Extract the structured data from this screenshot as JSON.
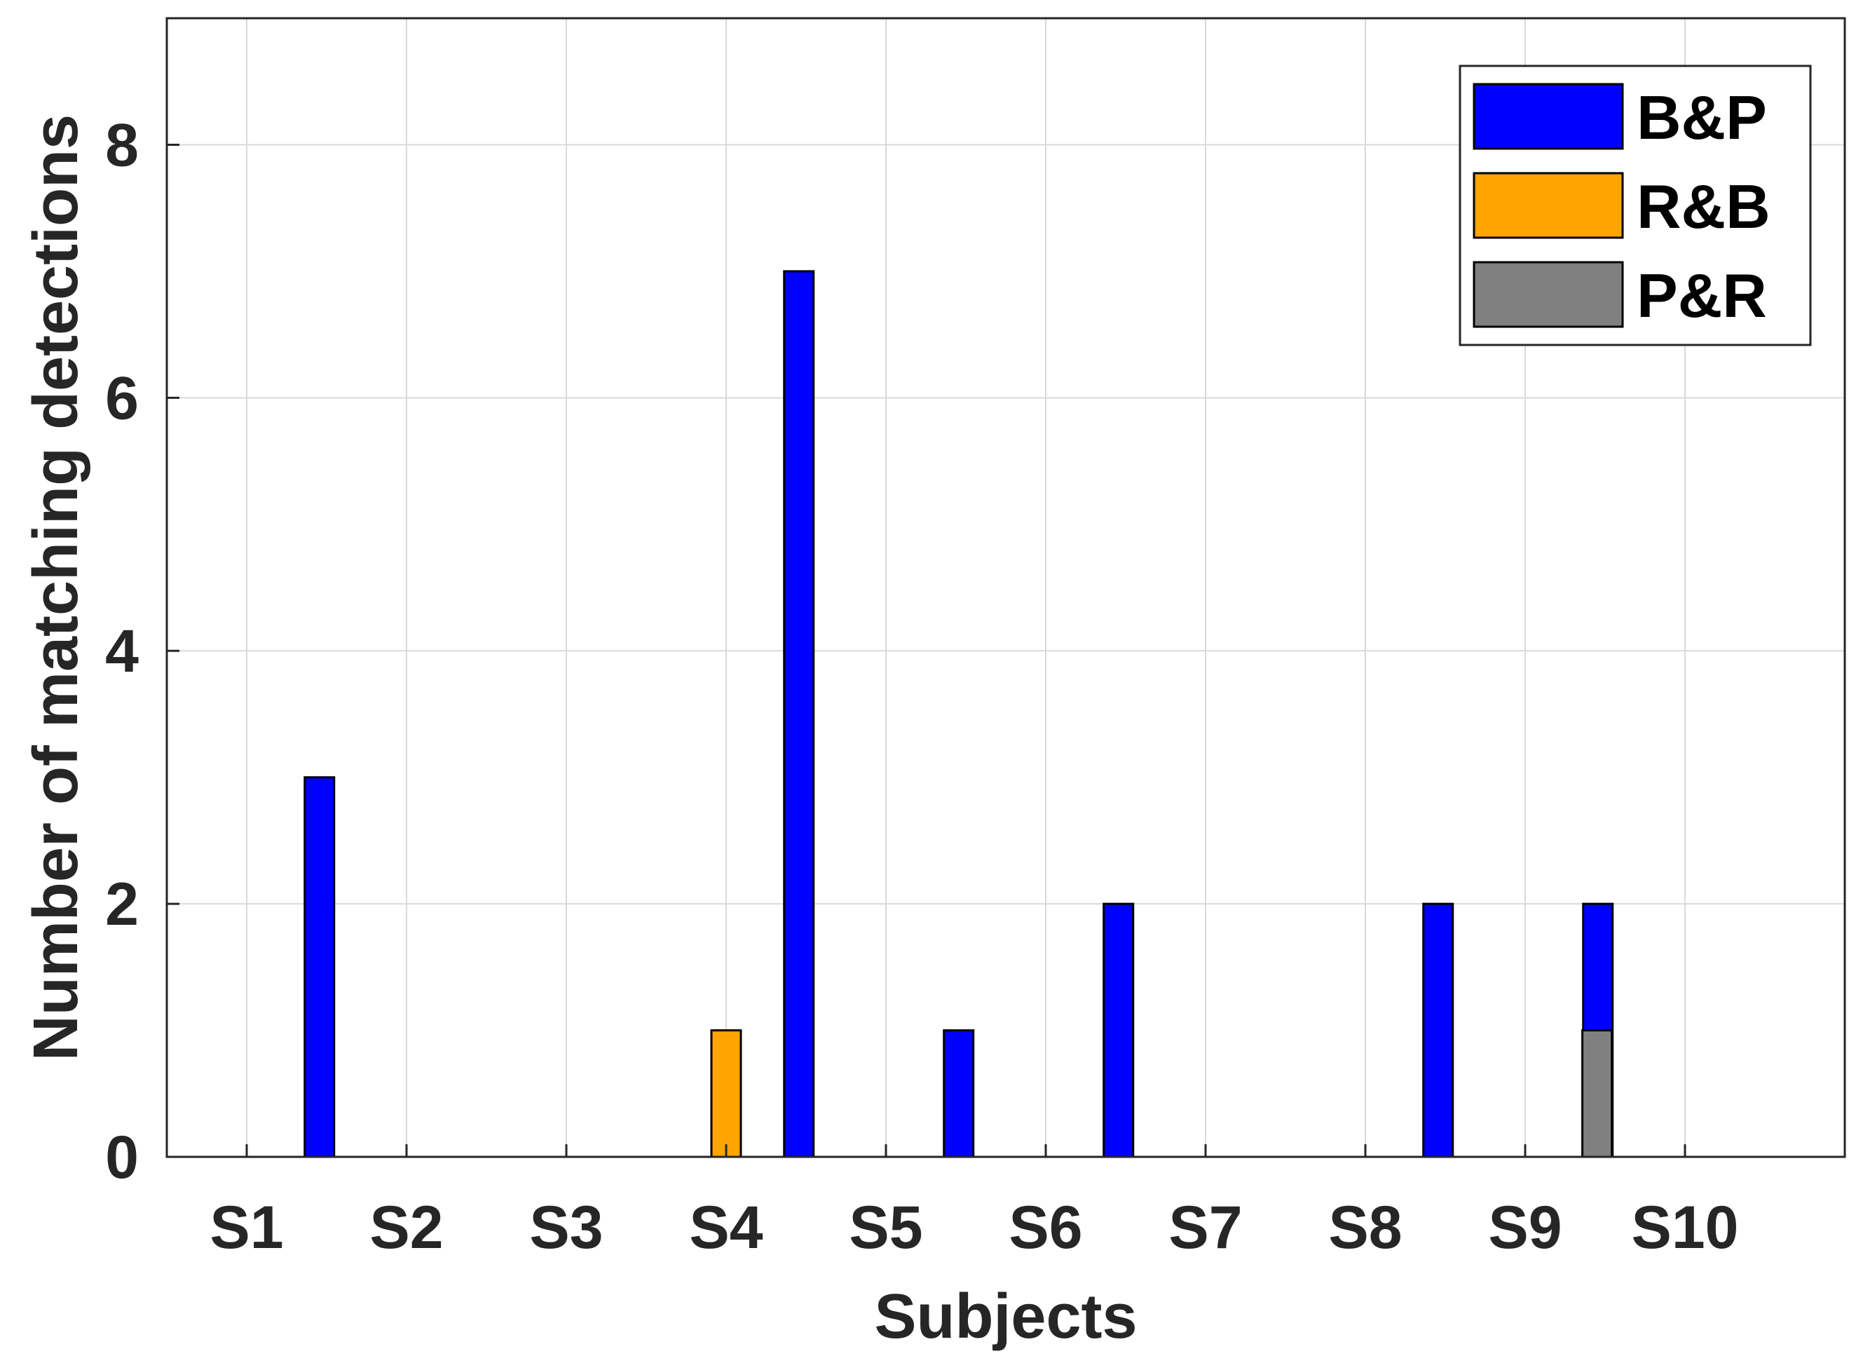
{
  "chart_data": {
    "type": "bar",
    "xlabel": "Subjects",
    "ylabel": "Number of matching detections",
    "categories": [
      "S1",
      "S2",
      "S3",
      "S4",
      "S5",
      "S6",
      "S7",
      "S8",
      "S9",
      "S10"
    ],
    "ylim": [
      0,
      9
    ],
    "yticks": [
      0,
      2,
      4,
      6,
      8
    ],
    "grid": true,
    "legend_position": "top-right",
    "series": [
      {
        "name": "B&P",
        "color": "#0000ff",
        "values": [
          0,
          3,
          0,
          0,
          7,
          1,
          2,
          0,
          2,
          2
        ]
      },
      {
        "name": "R&B",
        "color": "#ffa500",
        "values": [
          0,
          0,
          0,
          1,
          0,
          0,
          0,
          0,
          0,
          0
        ]
      },
      {
        "name": "P&R",
        "color": "#808080",
        "values": [
          0,
          0,
          0,
          0,
          0,
          0,
          0,
          0,
          1,
          0
        ]
      }
    ]
  }
}
